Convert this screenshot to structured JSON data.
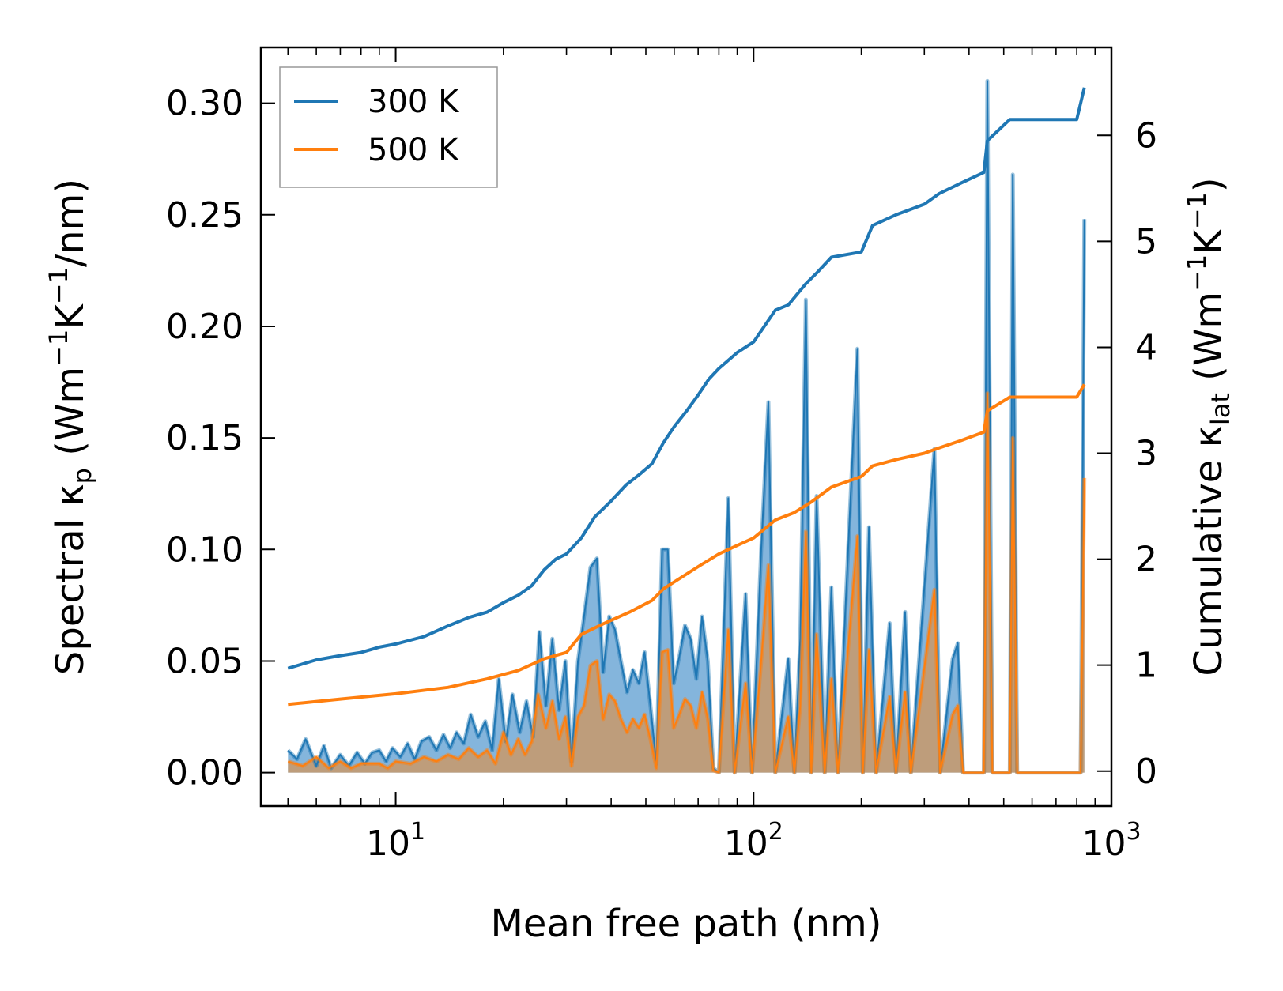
{
  "chart_data": {
    "type": "line",
    "x_scale": "log",
    "xlim": [
      4.2,
      1000
    ],
    "left_ylim": [
      -0.015,
      0.325
    ],
    "right_ylim": [
      -0.33,
      6.83
    ],
    "xlabel": "Mean free path (nm)",
    "left_ylabel": {
      "text": "Spectral κ",
      "sub": "p",
      "units": " (Wm",
      "units_sup1": "−1",
      "units_mid": "K",
      "units_sup2": "−1",
      "units_tail": "/nm)"
    },
    "right_ylabel": {
      "text": "Cumulative κ",
      "sub": "lat",
      "units": " (Wm",
      "units_sup1": "−1",
      "units_mid": "K",
      "units_sup2": "−1",
      "units_tail": ")"
    },
    "x_ticks": [
      {
        "value": 10,
        "base": "10",
        "exp": "1"
      },
      {
        "value": 100,
        "base": "10",
        "exp": "2"
      },
      {
        "value": 1000,
        "base": "10",
        "exp": "3"
      }
    ],
    "left_ticks": [
      {
        "value": 0.0,
        "label": "0.00"
      },
      {
        "value": 0.05,
        "label": "0.05"
      },
      {
        "value": 0.1,
        "label": "0.10"
      },
      {
        "value": 0.15,
        "label": "0.15"
      },
      {
        "value": 0.2,
        "label": "0.20"
      },
      {
        "value": 0.25,
        "label": "0.25"
      },
      {
        "value": 0.3,
        "label": "0.30"
      }
    ],
    "right_ticks": [
      {
        "value": 0,
        "label": "0"
      },
      {
        "value": 1,
        "label": "1"
      },
      {
        "value": 2,
        "label": "2"
      },
      {
        "value": 3,
        "label": "3"
      },
      {
        "value": 4,
        "label": "4"
      },
      {
        "value": 5,
        "label": "5"
      },
      {
        "value": 6,
        "label": "6"
      }
    ],
    "legend": {
      "position": "top-left",
      "entries": [
        {
          "label": "300 K",
          "color": "#1f77b4"
        },
        {
          "label": "500 K",
          "color": "#ff7f0e"
        }
      ]
    },
    "series": [
      {
        "name": "300 K",
        "color": "#1f77b4",
        "fill_color": "#6fa8d6",
        "cumulative": [
          [
            5.0,
            0.97
          ],
          [
            6.0,
            1.05
          ],
          [
            7.0,
            1.09
          ],
          [
            8.0,
            1.12
          ],
          [
            9.0,
            1.17
          ],
          [
            10.0,
            1.2
          ],
          [
            12.0,
            1.27
          ],
          [
            14.0,
            1.37
          ],
          [
            16.0,
            1.45
          ],
          [
            18.0,
            1.5
          ],
          [
            20.0,
            1.59
          ],
          [
            22.0,
            1.66
          ],
          [
            24.0,
            1.75
          ],
          [
            26.0,
            1.9
          ],
          [
            28.0,
            2.0
          ],
          [
            30.0,
            2.05
          ],
          [
            33.0,
            2.2
          ],
          [
            36.0,
            2.4
          ],
          [
            40.0,
            2.55
          ],
          [
            44.0,
            2.7
          ],
          [
            48.0,
            2.8
          ],
          [
            52.0,
            2.9
          ],
          [
            56.0,
            3.1
          ],
          [
            60.0,
            3.25
          ],
          [
            65.0,
            3.4
          ],
          [
            70.0,
            3.55
          ],
          [
            75.0,
            3.7
          ],
          [
            80.0,
            3.8
          ],
          [
            90.0,
            3.95
          ],
          [
            100.0,
            4.05
          ],
          [
            115.0,
            4.35
          ],
          [
            125.0,
            4.4
          ],
          [
            140.0,
            4.6
          ],
          [
            150.0,
            4.7
          ],
          [
            165.0,
            4.85
          ],
          [
            200.0,
            4.9
          ],
          [
            215.0,
            5.15
          ],
          [
            250.0,
            5.25
          ],
          [
            300.0,
            5.35
          ],
          [
            330.0,
            5.45
          ],
          [
            380.0,
            5.55
          ],
          [
            440.0,
            5.65
          ],
          [
            450.0,
            5.95
          ],
          [
            520.0,
            6.15
          ],
          [
            800.0,
            6.15
          ],
          [
            840.0,
            6.45
          ]
        ],
        "spectral": [
          [
            5.0,
            0.01
          ],
          [
            5.3,
            0.006
          ],
          [
            5.6,
            0.015
          ],
          [
            6.0,
            0.003
          ],
          [
            6.3,
            0.012
          ],
          [
            6.6,
            0.002
          ],
          [
            7.0,
            0.008
          ],
          [
            7.4,
            0.003
          ],
          [
            7.8,
            0.009
          ],
          [
            8.2,
            0.004
          ],
          [
            8.6,
            0.009
          ],
          [
            9.0,
            0.01
          ],
          [
            9.4,
            0.005
          ],
          [
            9.8,
            0.011
          ],
          [
            10.3,
            0.007
          ],
          [
            10.8,
            0.013
          ],
          [
            11.3,
            0.006
          ],
          [
            11.8,
            0.014
          ],
          [
            12.4,
            0.016
          ],
          [
            13.0,
            0.01
          ],
          [
            13.6,
            0.017
          ],
          [
            14.2,
            0.011
          ],
          [
            14.8,
            0.018
          ],
          [
            15.5,
            0.013
          ],
          [
            16.2,
            0.026
          ],
          [
            17.0,
            0.016
          ],
          [
            17.8,
            0.023
          ],
          [
            18.6,
            0.01
          ],
          [
            19.4,
            0.042
          ],
          [
            20.3,
            0.014
          ],
          [
            21.2,
            0.035
          ],
          [
            22.2,
            0.018
          ],
          [
            23.2,
            0.032
          ],
          [
            24.2,
            0.016
          ],
          [
            25.2,
            0.063
          ],
          [
            26.3,
            0.03
          ],
          [
            27.4,
            0.06
          ],
          [
            28.6,
            0.028
          ],
          [
            29.8,
            0.05
          ],
          [
            31.0,
            0.005
          ],
          [
            32.3,
            0.05
          ],
          [
            33.6,
            0.07
          ],
          [
            35.0,
            0.092
          ],
          [
            36.5,
            0.096
          ],
          [
            38.0,
            0.045
          ],
          [
            39.5,
            0.07
          ],
          [
            41.0,
            0.064
          ],
          [
            42.6,
            0.05
          ],
          [
            44.3,
            0.036
          ],
          [
            46.0,
            0.046
          ],
          [
            47.8,
            0.04
          ],
          [
            49.6,
            0.054
          ],
          [
            51.5,
            0.03
          ],
          [
            53.5,
            0.004
          ],
          [
            55.5,
            0.1
          ],
          [
            57.6,
            0.1
          ],
          [
            59.8,
            0.04
          ],
          [
            62.0,
            0.052
          ],
          [
            64.3,
            0.066
          ],
          [
            66.7,
            0.06
          ],
          [
            69.2,
            0.042
          ],
          [
            71.8,
            0.07
          ],
          [
            74.5,
            0.05
          ],
          [
            77.2,
            0.002
          ],
          [
            80.0,
            0.0
          ],
          [
            85.0,
            0.123
          ],
          [
            88.5,
            0.0
          ],
          [
            95.0,
            0.08
          ],
          [
            99.0,
            0.0
          ],
          [
            105.0,
            0.1
          ],
          [
            110.0,
            0.166
          ],
          [
            115.0,
            0.0
          ],
          [
            125.0,
            0.051
          ],
          [
            130.0,
            0.0
          ],
          [
            135.0,
            0.06
          ],
          [
            140.0,
            0.212
          ],
          [
            145.0,
            0.0
          ],
          [
            150.0,
            0.124
          ],
          [
            158.0,
            0.0
          ],
          [
            165.0,
            0.083
          ],
          [
            172.0,
            0.0
          ],
          [
            195.0,
            0.19
          ],
          [
            202.0,
            0.0
          ],
          [
            210.0,
            0.11
          ],
          [
            220.0,
            0.0
          ],
          [
            240.0,
            0.067
          ],
          [
            250.0,
            0.0
          ],
          [
            265.0,
            0.072
          ],
          [
            275.0,
            0.0
          ],
          [
            320.0,
            0.145
          ],
          [
            332.0,
            0.0
          ],
          [
            360.0,
            0.051
          ],
          [
            372.0,
            0.058
          ],
          [
            385.0,
            0.0
          ],
          [
            440.0,
            0.0
          ],
          [
            450.0,
            0.31
          ],
          [
            465.0,
            0.0
          ],
          [
            520.0,
            0.0
          ],
          [
            530.0,
            0.268
          ],
          [
            545.0,
            0.0
          ],
          [
            820.0,
            0.0
          ],
          [
            840.0,
            0.248
          ]
        ]
      },
      {
        "name": "500 K",
        "color": "#ff7f0e",
        "fill_color": "#c49a70",
        "cumulative": [
          [
            5.0,
            0.63
          ],
          [
            7.0,
            0.68
          ],
          [
            10.0,
            0.73
          ],
          [
            14.0,
            0.79
          ],
          [
            18.0,
            0.87
          ],
          [
            22.0,
            0.95
          ],
          [
            26.0,
            1.06
          ],
          [
            30.0,
            1.12
          ],
          [
            33.0,
            1.29
          ],
          [
            38.0,
            1.39
          ],
          [
            45.0,
            1.5
          ],
          [
            52.0,
            1.61
          ],
          [
            56.0,
            1.72
          ],
          [
            70.0,
            1.93
          ],
          [
            80.0,
            2.05
          ],
          [
            90.0,
            2.13
          ],
          [
            100.0,
            2.2
          ],
          [
            115.0,
            2.37
          ],
          [
            130.0,
            2.44
          ],
          [
            145.0,
            2.54
          ],
          [
            165.0,
            2.68
          ],
          [
            200.0,
            2.78
          ],
          [
            215.0,
            2.88
          ],
          [
            250.0,
            2.94
          ],
          [
            300.0,
            3.0
          ],
          [
            330.0,
            3.05
          ],
          [
            380.0,
            3.12
          ],
          [
            440.0,
            3.2
          ],
          [
            450.0,
            3.4
          ],
          [
            520.0,
            3.53
          ],
          [
            800.0,
            3.53
          ],
          [
            840.0,
            3.65
          ]
        ],
        "spectral": [
          [
            5.0,
            0.005
          ],
          [
            5.5,
            0.003
          ],
          [
            6.0,
            0.007
          ],
          [
            6.5,
            0.002
          ],
          [
            7.0,
            0.005
          ],
          [
            7.5,
            0.002
          ],
          [
            8.0,
            0.004
          ],
          [
            9.0,
            0.004
          ],
          [
            9.5,
            0.002
          ],
          [
            10.0,
            0.005
          ],
          [
            11.0,
            0.004
          ],
          [
            12.0,
            0.007
          ],
          [
            13.0,
            0.005
          ],
          [
            14.0,
            0.008
          ],
          [
            15.0,
            0.006
          ],
          [
            16.0,
            0.011
          ],
          [
            17.0,
            0.007
          ],
          [
            18.0,
            0.01
          ],
          [
            19.0,
            0.004
          ],
          [
            20.0,
            0.018
          ],
          [
            21.0,
            0.008
          ],
          [
            22.0,
            0.015
          ],
          [
            23.0,
            0.008
          ],
          [
            24.0,
            0.014
          ],
          [
            25.0,
            0.035
          ],
          [
            26.3,
            0.02
          ],
          [
            27.4,
            0.032
          ],
          [
            28.6,
            0.015
          ],
          [
            29.8,
            0.025
          ],
          [
            31.0,
            0.003
          ],
          [
            32.3,
            0.025
          ],
          [
            33.6,
            0.03
          ],
          [
            35.0,
            0.048
          ],
          [
            36.5,
            0.05
          ],
          [
            38.0,
            0.024
          ],
          [
            39.5,
            0.035
          ],
          [
            41.0,
            0.032
          ],
          [
            42.6,
            0.024
          ],
          [
            44.3,
            0.018
          ],
          [
            46.0,
            0.024
          ],
          [
            47.8,
            0.02
          ],
          [
            49.6,
            0.026
          ],
          [
            51.5,
            0.015
          ],
          [
            53.5,
            0.002
          ],
          [
            55.5,
            0.054
          ],
          [
            57.6,
            0.055
          ],
          [
            59.8,
            0.02
          ],
          [
            62.0,
            0.026
          ],
          [
            64.3,
            0.033
          ],
          [
            66.7,
            0.03
          ],
          [
            69.2,
            0.02
          ],
          [
            71.8,
            0.036
          ],
          [
            74.5,
            0.024
          ],
          [
            77.2,
            0.001
          ],
          [
            80.0,
            0.0
          ],
          [
            85.0,
            0.064
          ],
          [
            88.5,
            0.0
          ],
          [
            95.0,
            0.04
          ],
          [
            99.0,
            0.0
          ],
          [
            105.0,
            0.05
          ],
          [
            110.0,
            0.093
          ],
          [
            115.0,
            0.0
          ],
          [
            125.0,
            0.025
          ],
          [
            130.0,
            0.0
          ],
          [
            135.0,
            0.03
          ],
          [
            140.0,
            0.108
          ],
          [
            145.0,
            0.0
          ],
          [
            150.0,
            0.062
          ],
          [
            158.0,
            0.0
          ],
          [
            165.0,
            0.042
          ],
          [
            172.0,
            0.0
          ],
          [
            195.0,
            0.106
          ],
          [
            202.0,
            0.0
          ],
          [
            210.0,
            0.055
          ],
          [
            220.0,
            0.0
          ],
          [
            240.0,
            0.034
          ],
          [
            250.0,
            0.0
          ],
          [
            265.0,
            0.036
          ],
          [
            275.0,
            0.0
          ],
          [
            320.0,
            0.082
          ],
          [
            332.0,
            0.0
          ],
          [
            360.0,
            0.026
          ],
          [
            372.0,
            0.03
          ],
          [
            385.0,
            0.0
          ],
          [
            440.0,
            0.0
          ],
          [
            450.0,
            0.17
          ],
          [
            465.0,
            0.0
          ],
          [
            520.0,
            0.0
          ],
          [
            530.0,
            0.15
          ],
          [
            545.0,
            0.0
          ],
          [
            820.0,
            0.0
          ],
          [
            840.0,
            0.132
          ]
        ]
      }
    ]
  }
}
